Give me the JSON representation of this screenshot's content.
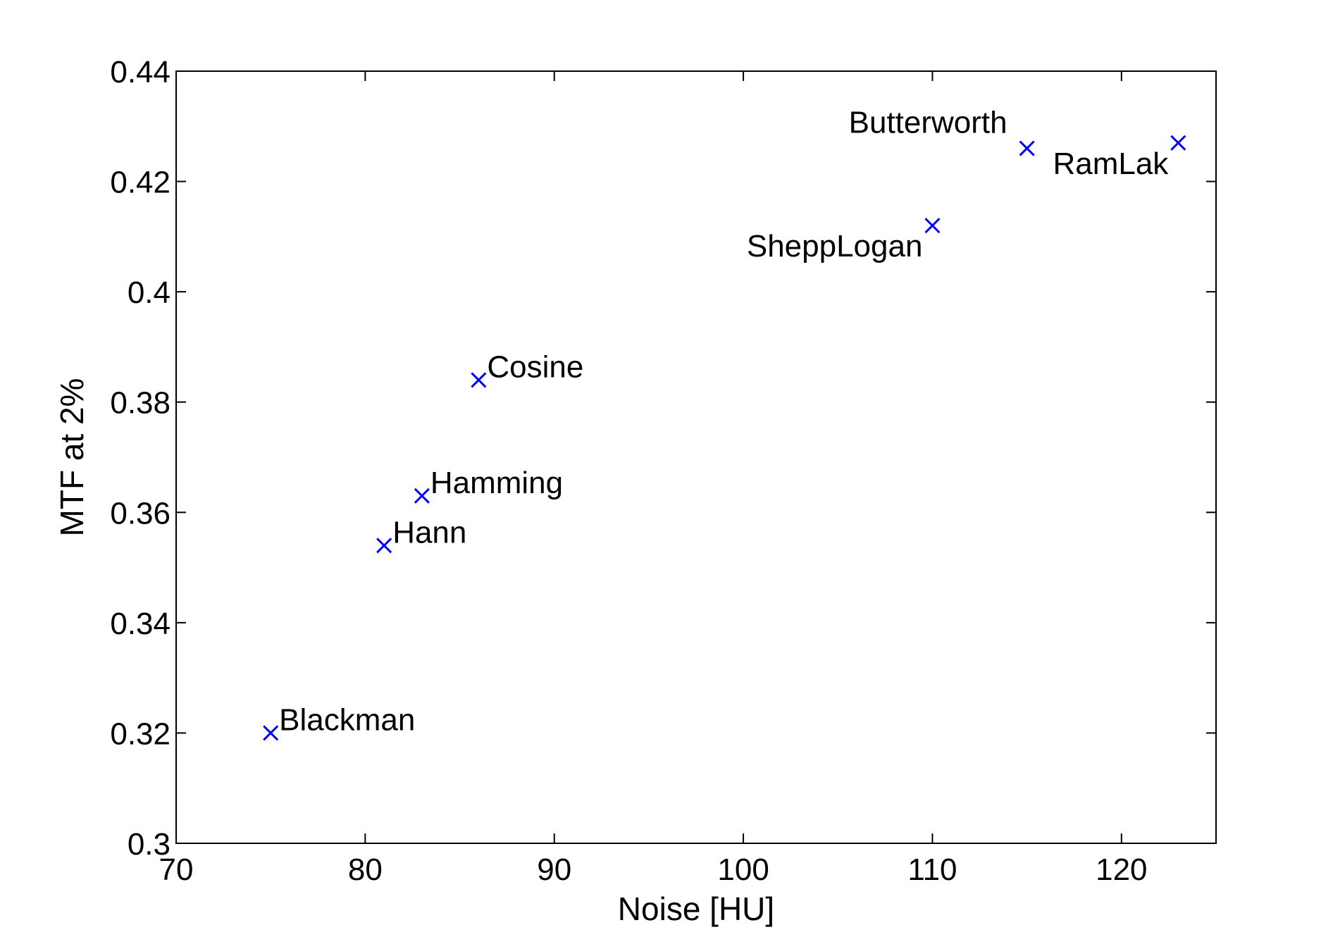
{
  "chart_data": {
    "type": "scatter",
    "title": "",
    "xlabel": "Noise [HU]",
    "ylabel": "MTF at 2%",
    "xlim": [
      70,
      125
    ],
    "ylim": [
      0.3,
      0.44
    ],
    "xticks": [
      70,
      80,
      90,
      100,
      110,
      120
    ],
    "xtick_labels": [
      "70",
      "80",
      "90",
      "100",
      "110",
      "120"
    ],
    "yticks": [
      0.3,
      0.32,
      0.34,
      0.36,
      0.38,
      0.4,
      0.42,
      0.44
    ],
    "ytick_labels": [
      "0.3",
      "0.32",
      "0.34",
      "0.36",
      "0.38",
      "0.4",
      "0.42",
      "0.44"
    ],
    "grid": false,
    "marker": "x",
    "marker_color": "#0000ff",
    "points": [
      {
        "label": "Blackman",
        "x": 75,
        "y": 0.32,
        "label_side": "right"
      },
      {
        "label": "Hann",
        "x": 81,
        "y": 0.354,
        "label_side": "right"
      },
      {
        "label": "Hamming",
        "x": 83,
        "y": 0.363,
        "label_side": "right"
      },
      {
        "label": "Cosine",
        "x": 86,
        "y": 0.384,
        "label_side": "right"
      },
      {
        "label": "SheppLogan",
        "x": 110,
        "y": 0.412,
        "label_side": "left-below"
      },
      {
        "label": "Butterworth",
        "x": 115,
        "y": 0.426,
        "label_side": "left-above"
      },
      {
        "label": "RamLak",
        "x": 123,
        "y": 0.427,
        "label_side": "left-below"
      }
    ]
  }
}
